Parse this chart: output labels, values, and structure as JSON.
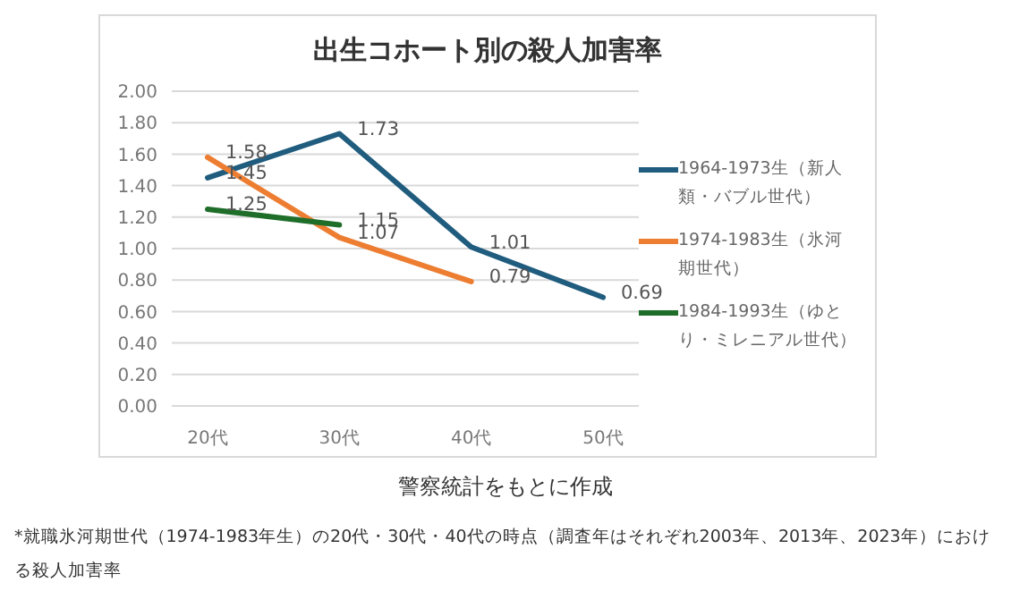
{
  "chart_data": {
    "type": "line",
    "title": "出生コホート別の殺人加害率",
    "categories": [
      "20代",
      "30代",
      "40代",
      "50代"
    ],
    "series": [
      {
        "name": "1964-1973生（新人類・バブル世代）",
        "color": "#1f5c7e",
        "values": [
          1.45,
          1.73,
          1.01,
          0.69
        ]
      },
      {
        "name": "1974-1983生（氷河期世代）",
        "color": "#ed7d31",
        "values": [
          1.58,
          1.07,
          0.79,
          null
        ]
      },
      {
        "name": "1984-1993生（ゆとり・ミレニアル世代）",
        "color": "#1e6e2a",
        "values": [
          1.25,
          1.15,
          null,
          null
        ]
      }
    ],
    "ylim": [
      0,
      2
    ],
    "yticks": [
      "0.00",
      "0.20",
      "0.40",
      "0.60",
      "0.80",
      "1.00",
      "1.20",
      "1.40",
      "1.60",
      "1.80",
      "2.00"
    ],
    "grid": "y",
    "legend": "right",
    "marker": "none",
    "line_style": "solid",
    "data_labels": true,
    "annotations": [
      "警察統計をもとに作成",
      "*就職氷河期世代（1974-1983年生）の20代・30代・40代の時点（調査年はそれぞれ2003年、2013年、2023年）における殺人加害率"
    ]
  }
}
